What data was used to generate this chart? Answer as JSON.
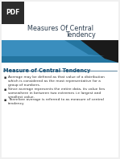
{
  "title_line1": "Measures Of Central",
  "title_line2": "Tendency",
  "section_heading": "Measure of Central Tendency",
  "bullets": [
    "Average may be defined as that value of a distribution\nwhich is considered as the most representative for a\ngroup of numbers.",
    "Since average represents the entire data, its value lies\nsomewhere in between two extremes i.e largest and\nsmallest value.",
    "Therefore average is referred to as measure of central\ntendency"
  ],
  "bg_color": "#f0f0f0",
  "slide_bg": "#ffffff",
  "header_bg": "#1a1a2e",
  "pdf_box_color": "#2c2c2c",
  "pdf_text_color": "#ffffff",
  "title_color": "#2c3e50",
  "heading_color": "#1a5276",
  "bullet_color": "#333333",
  "bar_color_dark": "#1a3a5c",
  "bar_color_light": "#2980b9"
}
